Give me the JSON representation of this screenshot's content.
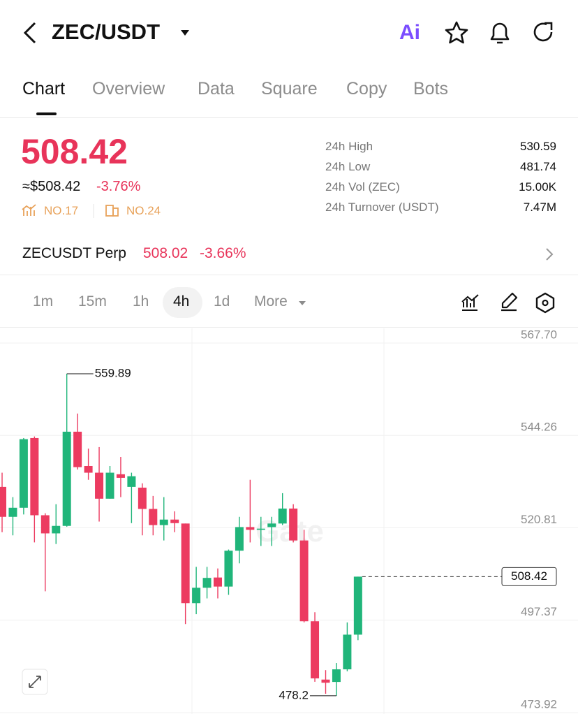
{
  "header": {
    "title": "ZEC/USDT",
    "ai": "Ai"
  },
  "tabs": [
    "Chart",
    "Overview",
    "Data",
    "Square",
    "Copy",
    "Bots"
  ],
  "price": {
    "last": "508.42",
    "approx": "≈$508.42",
    "change": "-3.76%",
    "rank1": "NO.17",
    "rank2": "NO.24"
  },
  "stats": [
    {
      "label": "24h High",
      "value": "530.59"
    },
    {
      "label": "24h Low",
      "value": "481.74"
    },
    {
      "label": "24h Vol (ZEC)",
      "value": "15.00K"
    },
    {
      "label": "24h Turnover (USDT)",
      "value": "7.47M"
    }
  ],
  "perp": {
    "name": "ZECUSDT Perp",
    "price": "508.02",
    "change": "-3.66%"
  },
  "intervals": [
    "1m",
    "15m",
    "1h",
    "4h",
    "1d",
    "More"
  ],
  "chart_data": {
    "type": "candlestick",
    "watermark": "Gate",
    "up_color": "#20b57a",
    "down_color": "#ec3b60",
    "ylim": [
      473.92,
      567.7
    ],
    "yticks": [
      {
        "value": 567.7,
        "label": "567.70"
      },
      544.26,
      520.81,
      497.37,
      473.92
    ],
    "grid": true,
    "open": [
      531.2,
      523.6,
      525.9,
      543.6,
      524.0,
      519.4,
      521.3,
      545.2,
      536.5,
      534.8,
      528.2,
      534.4,
      531.2,
      531.0,
      525.6,
      521.5,
      522.9,
      521.9,
      501.7,
      505.6,
      508.2,
      505.9,
      515.0,
      521.0,
      520.3,
      521.0,
      521.9,
      525.7,
      517.6,
      497.1,
      482.3,
      481.7,
      484.9,
      493.7
    ],
    "high": [
      534.8,
      528.6,
      543.6,
      544.0,
      524.5,
      526.8,
      559.89,
      549.8,
      540.9,
      541.3,
      536.5,
      538.8,
      534.8,
      532.1,
      528.9,
      528.6,
      525.0,
      521.9,
      510.9,
      510.9,
      510.5,
      515.3,
      523.6,
      533.0,
      523.6,
      523.6,
      529.6,
      526.8,
      520.3,
      499.4,
      484.7,
      486.5,
      496.8,
      508.42
    ],
    "low": [
      519.7,
      518.9,
      524.2,
      517.1,
      504.7,
      516.7,
      521.1,
      535.6,
      533.0,
      522.4,
      528.2,
      528.6,
      522.0,
      518.9,
      518.9,
      517.6,
      519.7,
      496.4,
      498.9,
      502.9,
      502.9,
      503.8,
      511.8,
      517.1,
      516.2,
      516.2,
      521.5,
      517.1,
      496.8,
      481.74,
      478.7,
      478.2,
      484.4,
      492.3
    ],
    "close": [
      523.6,
      525.9,
      543.3,
      524.0,
      519.4,
      521.3,
      545.2,
      536.2,
      534.8,
      528.2,
      534.8,
      533.5,
      533.9,
      525.6,
      521.5,
      522.9,
      522.0,
      501.7,
      505.6,
      508.1,
      505.9,
      515.0,
      521.0,
      520.3,
      520.6,
      521.9,
      525.7,
      517.6,
      497.1,
      482.6,
      481.5,
      484.9,
      493.7,
      508.42
    ]
  }
}
